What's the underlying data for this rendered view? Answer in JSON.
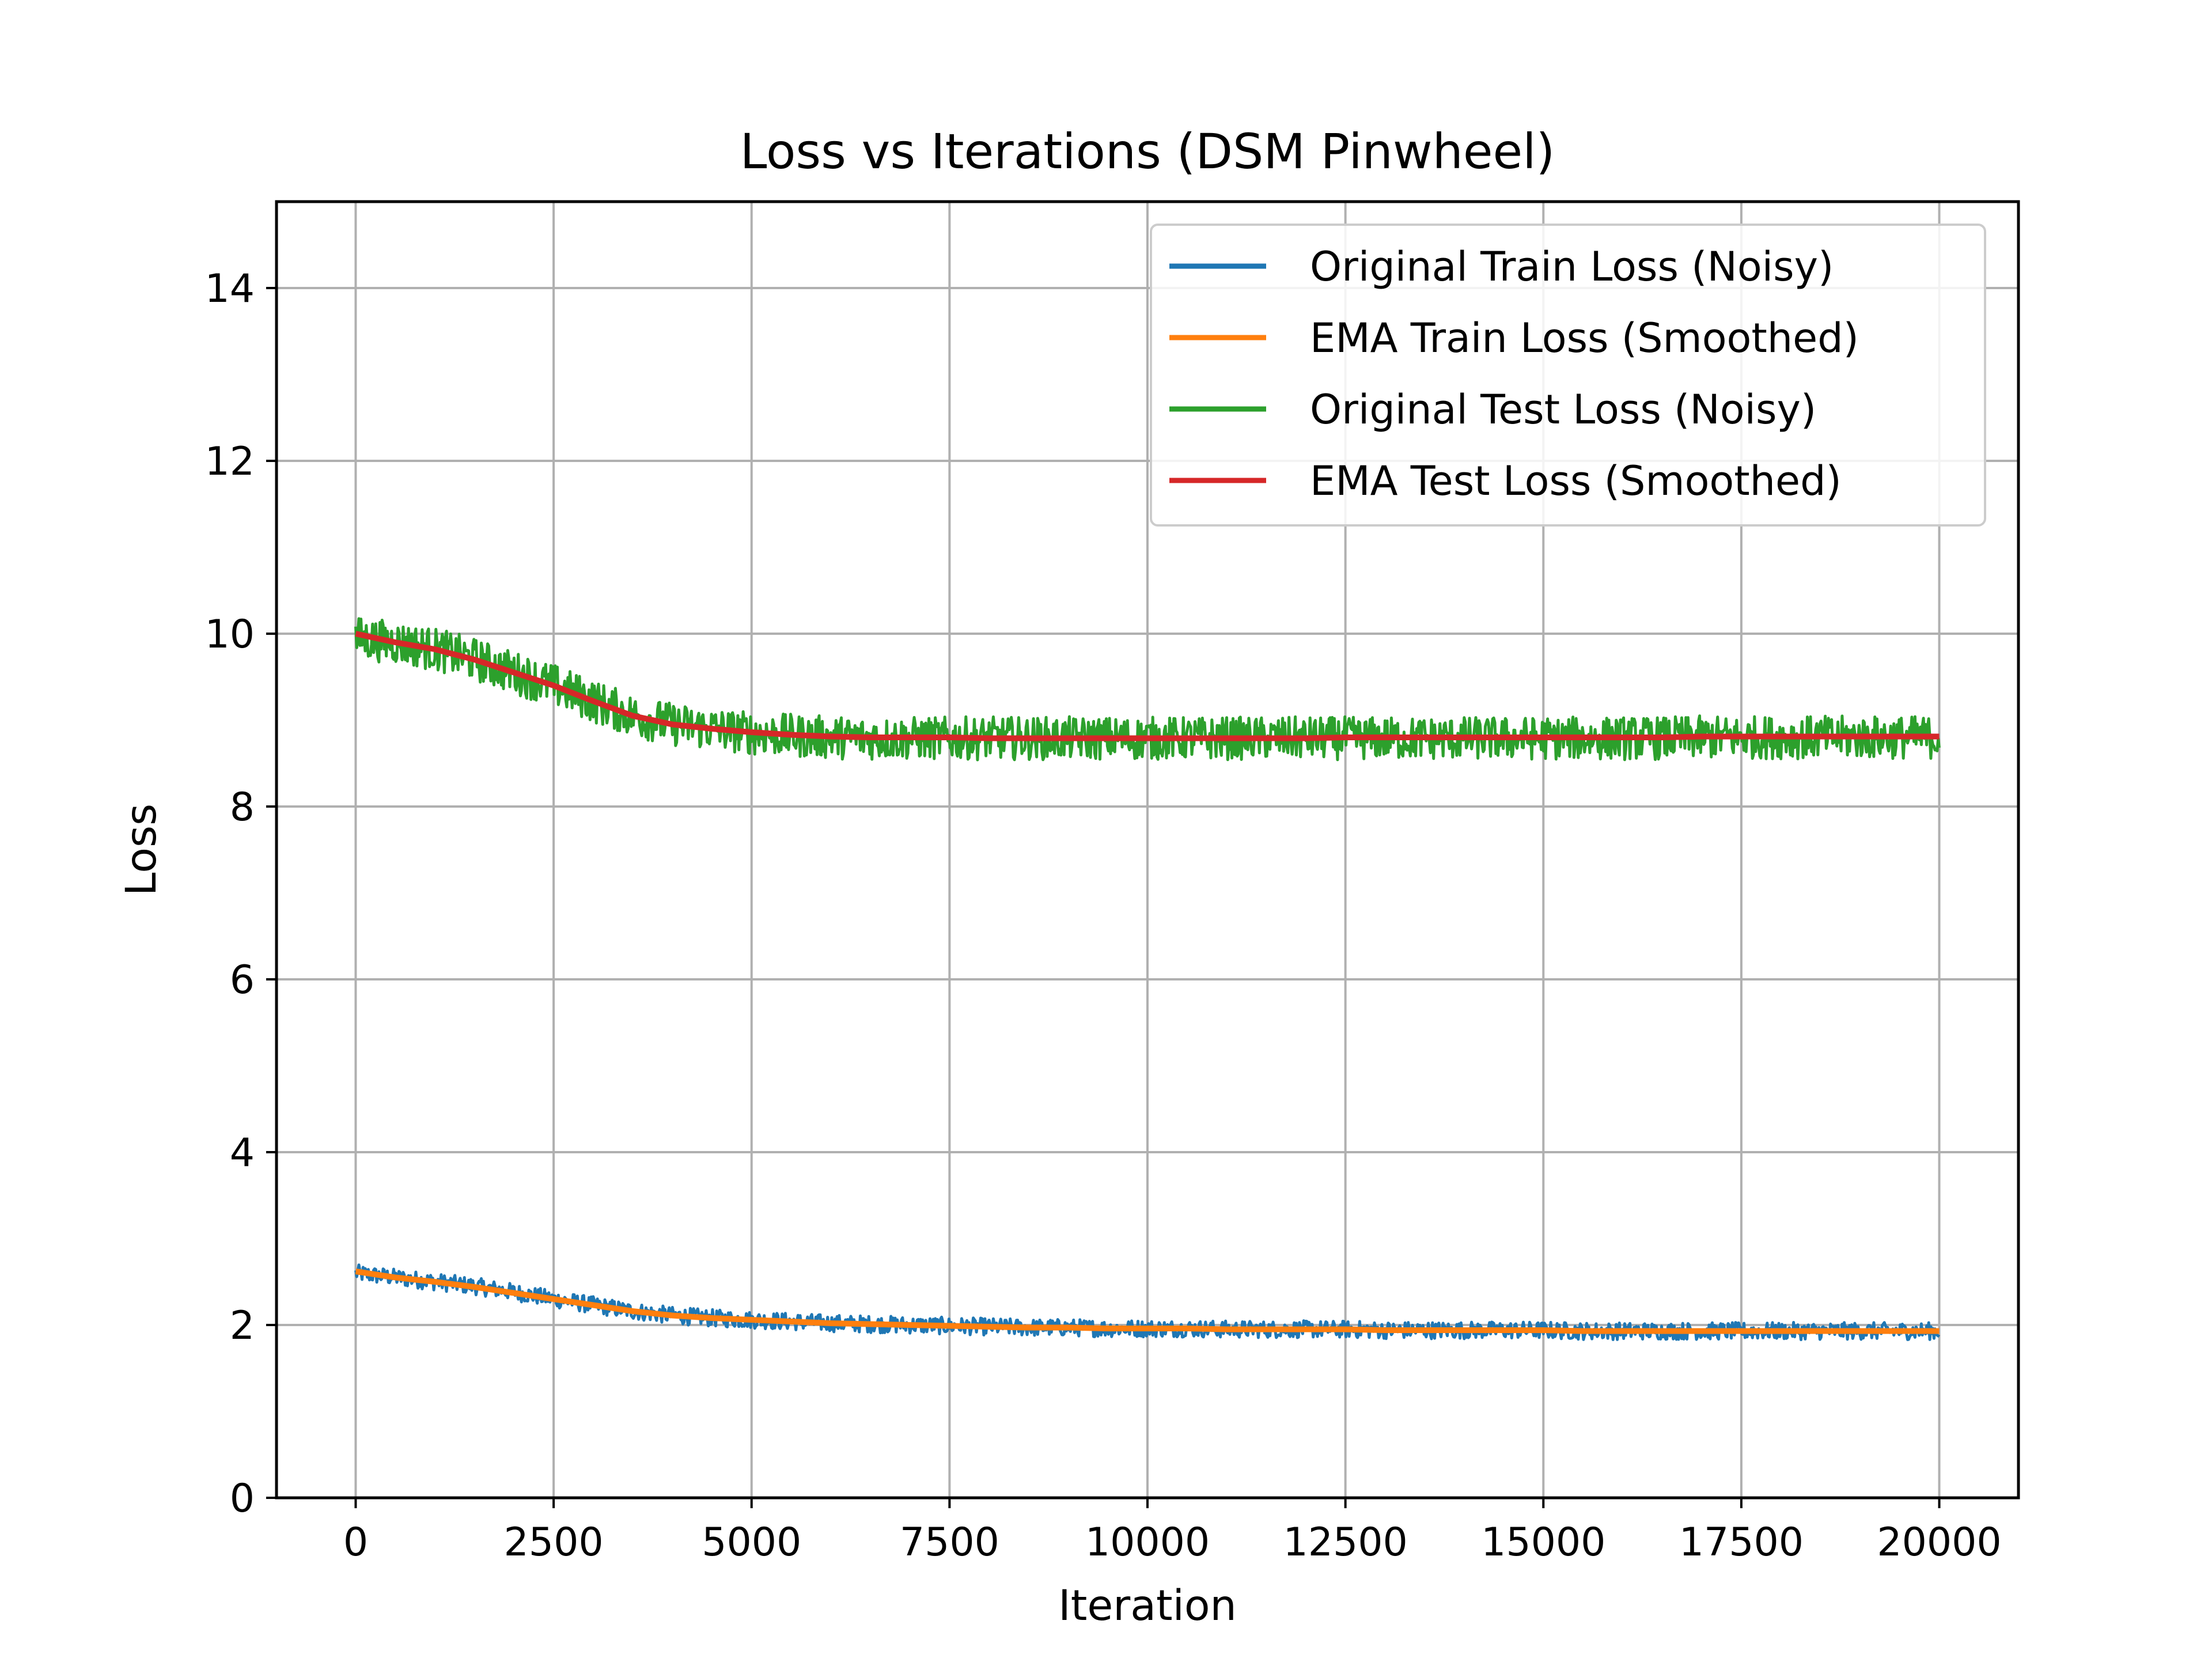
{
  "chart_data": {
    "type": "line",
    "title": "Loss vs Iterations (DSM Pinwheel)",
    "xlabel": "Iteration",
    "ylabel": "Loss",
    "xlim": [
      -1000,
      21000
    ],
    "ylim": [
      0,
      15
    ],
    "xticks": [
      0,
      2500,
      5000,
      7500,
      10000,
      12500,
      15000,
      17500,
      20000
    ],
    "xtick_labels": [
      "0",
      "2500",
      "5000",
      "7500",
      "10000",
      "12500",
      "15000",
      "17500",
      "20000"
    ],
    "yticks": [
      0,
      2,
      4,
      6,
      8,
      10,
      12,
      14
    ],
    "ytick_labels": [
      "0",
      "2",
      "4",
      "6",
      "8",
      "10",
      "12",
      "14"
    ],
    "grid": true,
    "legend_position": "upper right",
    "x": [
      0,
      500,
      1000,
      1500,
      2000,
      2500,
      3000,
      3500,
      4000,
      4500,
      5000,
      5500,
      6000,
      6500,
      7000,
      7500,
      8000,
      8500,
      9000,
      9500,
      10000,
      10500,
      11000,
      11500,
      12000,
      12500,
      13000,
      13500,
      14000,
      14500,
      15000,
      15500,
      16000,
      16500,
      17000,
      17500,
      18000,
      18500,
      19000,
      19500,
      20000
    ],
    "series": [
      {
        "name": "Original Train Loss (Noisy)",
        "color": "#1f77b4",
        "noise_amplitude": 0.1,
        "values": [
          2.6,
          2.55,
          2.5,
          2.45,
          2.38,
          2.3,
          2.23,
          2.16,
          2.11,
          2.08,
          2.06,
          2.04,
          2.02,
          2.01,
          2.0,
          1.99,
          1.98,
          1.97,
          1.97,
          1.96,
          1.96,
          1.96,
          1.95,
          1.95,
          1.95,
          1.95,
          1.94,
          1.94,
          1.94,
          1.94,
          1.94,
          1.93,
          1.93,
          1.93,
          1.93,
          1.93,
          1.93,
          1.93,
          1.93,
          1.93,
          1.93
        ]
      },
      {
        "name": "EMA Train Loss (Smoothed)",
        "color": "#ff7f0e",
        "values": [
          2.62,
          2.55,
          2.5,
          2.44,
          2.37,
          2.3,
          2.23,
          2.16,
          2.11,
          2.08,
          2.06,
          2.04,
          2.02,
          2.01,
          2.0,
          1.99,
          1.98,
          1.97,
          1.97,
          1.96,
          1.96,
          1.96,
          1.95,
          1.95,
          1.95,
          1.95,
          1.94,
          1.94,
          1.94,
          1.94,
          1.94,
          1.93,
          1.93,
          1.93,
          1.93,
          1.93,
          1.93,
          1.93,
          1.93,
          1.93,
          1.93
        ]
      },
      {
        "name": "Original Test Loss (Noisy)",
        "color": "#2ca02c",
        "noise_amplitude": 0.25,
        "values": [
          9.95,
          9.9,
          9.82,
          9.7,
          9.55,
          9.4,
          9.22,
          9.05,
          8.95,
          8.9,
          8.85,
          8.82,
          8.8,
          8.79,
          8.79,
          8.79,
          8.79,
          8.79,
          8.79,
          8.79,
          8.79,
          8.79,
          8.79,
          8.79,
          8.79,
          8.79,
          8.79,
          8.79,
          8.79,
          8.79,
          8.79,
          8.79,
          8.79,
          8.79,
          8.8,
          8.8,
          8.8,
          8.8,
          8.8,
          8.8,
          8.8
        ]
      },
      {
        "name": "EMA Test Loss (Smoothed)",
        "color": "#d62728",
        "values": [
          10.0,
          9.9,
          9.82,
          9.7,
          9.55,
          9.4,
          9.22,
          9.05,
          8.95,
          8.9,
          8.86,
          8.83,
          8.81,
          8.8,
          8.8,
          8.8,
          8.79,
          8.79,
          8.79,
          8.79,
          8.79,
          8.79,
          8.79,
          8.79,
          8.79,
          8.8,
          8.8,
          8.8,
          8.8,
          8.8,
          8.8,
          8.8,
          8.8,
          8.8,
          8.81,
          8.81,
          8.81,
          8.81,
          8.81,
          8.81,
          8.81
        ]
      }
    ]
  }
}
